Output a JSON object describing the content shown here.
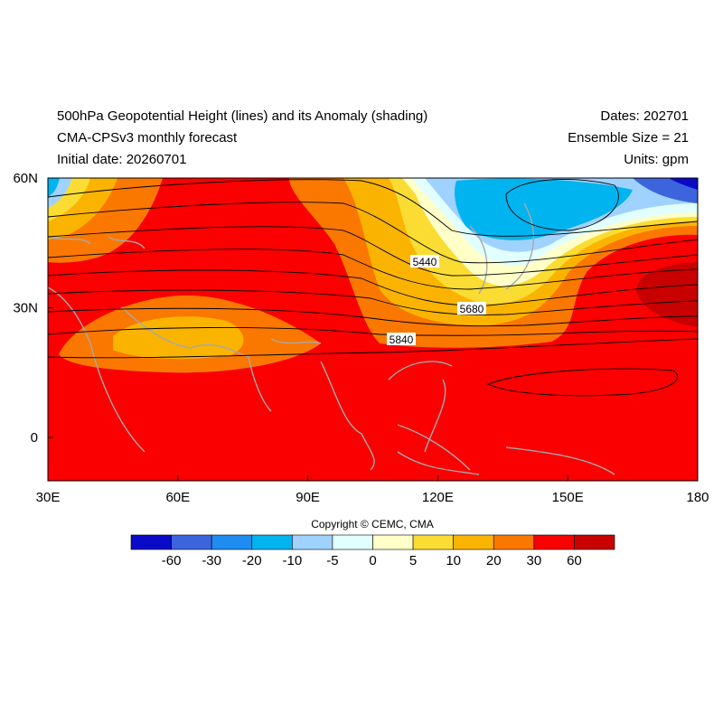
{
  "header": {
    "title": "500hPa Geopotential Height (lines) and its Anomaly (shading)",
    "subtitle": "CMA-CPSv3 monthly forecast",
    "initial_date": "Initial date: 20260701",
    "dates": "Dates: 202701",
    "ensemble": "Ensemble Size = 21",
    "units": "Units: gpm"
  },
  "map": {
    "xlim": [
      30,
      180
    ],
    "ylim": [
      -10,
      60
    ],
    "xticks": [
      {
        "value": 30,
        "label": "30E"
      },
      {
        "value": 60,
        "label": "60E"
      },
      {
        "value": 90,
        "label": "90E"
      },
      {
        "value": 120,
        "label": "120E"
      },
      {
        "value": 150,
        "label": "150E"
      },
      {
        "value": 180,
        "label": "180"
      }
    ],
    "yticks": [
      0,
      {
        "value": 30,
        "label": "30N"
      },
      {
        "value": 60,
        "label": "60N"
      }
    ],
    "contour_labels": [
      5440,
      5680,
      5840
    ]
  },
  "colorbar": {
    "labels": [
      -60,
      -30,
      -20,
      -10,
      -5,
      0,
      5,
      10,
      20,
      30,
      60
    ],
    "colors": [
      "#0a0ac8",
      "#3c64dc",
      "#1e8cf0",
      "#00b4f0",
      "#a0d2ff",
      "#e1ffff",
      "#ffffc8",
      "#fadc32",
      "#fab400",
      "#fa7800",
      "#fa0000",
      "#c80000"
    ]
  },
  "copyright": "Copyright © CEMC, CMA"
}
